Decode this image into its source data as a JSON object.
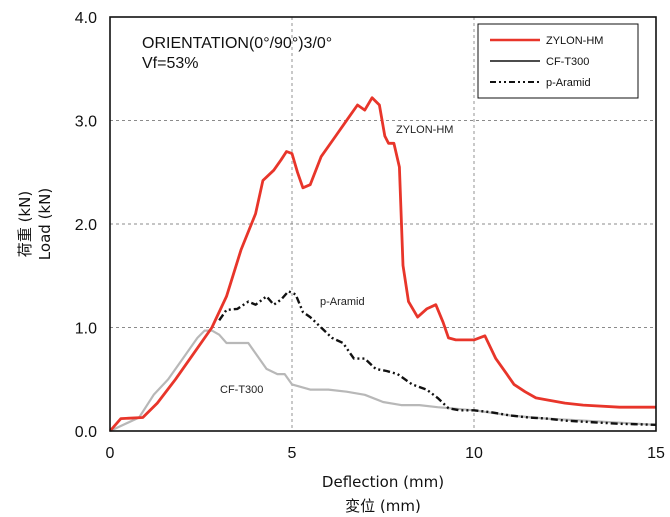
{
  "chart_data": {
    "type": "line",
    "xlabel": "Deflection (mm)",
    "xlabel_ja": "変位 (mm)",
    "ylabel": "Load (kN)",
    "ylabel_ja": "荷重 (kN)",
    "xlim": [
      0,
      15
    ],
    "ylim": [
      0,
      4.0
    ],
    "x_ticks": [
      0,
      5,
      10,
      15
    ],
    "y_ticks": [
      0.0,
      1.0,
      2.0,
      3.0,
      4.0
    ],
    "y_tick_labels": [
      "0.0",
      "1.0",
      "2.0",
      "3.0",
      "4.0"
    ],
    "grid": true,
    "legend_position": "top-right",
    "notes": [
      "ORIENTATION(0°/90°)3/0°",
      "Vf=53%"
    ],
    "series": [
      {
        "name": "ZYLON-HM",
        "color": "#e8352a",
        "style": "solid",
        "annotation": "ZYLON-HM",
        "x": [
          0,
          0.3,
          0.9,
          1.3,
          1.8,
          2.3,
          2.8,
          3.2,
          3.6,
          4.0,
          4.2,
          4.5,
          4.7,
          4.85,
          5.0,
          5.15,
          5.3,
          5.5,
          5.8,
          6.2,
          6.6,
          6.8,
          7.0,
          7.2,
          7.4,
          7.55,
          7.65,
          7.8,
          7.95,
          8.05,
          8.2,
          8.45,
          8.7,
          8.95,
          9.15,
          9.3,
          9.5,
          10.0,
          10.3,
          10.6,
          10.9,
          11.1,
          11.4,
          11.7,
          12.0,
          12.5,
          13.0,
          14.0,
          15.0
        ],
        "y": [
          0.0,
          0.12,
          0.13,
          0.27,
          0.5,
          0.75,
          1.0,
          1.3,
          1.75,
          2.1,
          2.42,
          2.52,
          2.62,
          2.7,
          2.68,
          2.5,
          2.35,
          2.38,
          2.65,
          2.85,
          3.05,
          3.15,
          3.1,
          3.22,
          3.15,
          2.85,
          2.78,
          2.78,
          2.55,
          1.6,
          1.25,
          1.1,
          1.18,
          1.22,
          1.05,
          0.9,
          0.88,
          0.88,
          0.92,
          0.7,
          0.55,
          0.45,
          0.38,
          0.32,
          0.3,
          0.27,
          0.25,
          0.23,
          0.23
        ]
      },
      {
        "name": "CF-T300",
        "color": "#b8b8b8",
        "style": "solid",
        "annotation": "CF-T300",
        "x": [
          0,
          0.8,
          1.2,
          1.6,
          2.0,
          2.4,
          2.6,
          2.8,
          3.0,
          3.2,
          3.4,
          3.8,
          4.0,
          4.3,
          4.6,
          4.8,
          5.0,
          5.5,
          6.0,
          6.5,
          7.0,
          7.5,
          8.0,
          8.5,
          9.0,
          10.0,
          11.0,
          12.0,
          13.0,
          14.0,
          15.0
        ],
        "y": [
          0.0,
          0.13,
          0.35,
          0.5,
          0.7,
          0.9,
          0.97,
          0.97,
          0.93,
          0.85,
          0.85,
          0.85,
          0.75,
          0.6,
          0.55,
          0.55,
          0.45,
          0.4,
          0.4,
          0.38,
          0.35,
          0.28,
          0.25,
          0.25,
          0.23,
          0.2,
          0.15,
          0.12,
          0.1,
          0.08,
          0.06
        ]
      },
      {
        "name": "p-Aramid",
        "color": "#111111",
        "style": "dash-dot",
        "annotation": "p-Aramid",
        "x": [
          3.0,
          3.2,
          3.5,
          3.8,
          4.0,
          4.3,
          4.5,
          4.7,
          4.9,
          5.1,
          5.3,
          5.5,
          5.8,
          6.1,
          6.4,
          6.7,
          7.0,
          7.3,
          7.6,
          7.9,
          8.3,
          8.7,
          9.0,
          9.3,
          9.6,
          10.0,
          10.5,
          11.0,
          11.5,
          12.0,
          12.5,
          13.0,
          14.0,
          15.0
        ],
        "y": [
          1.07,
          1.17,
          1.18,
          1.25,
          1.22,
          1.3,
          1.22,
          1.27,
          1.35,
          1.32,
          1.15,
          1.1,
          1.0,
          0.9,
          0.85,
          0.7,
          0.7,
          0.6,
          0.58,
          0.55,
          0.45,
          0.4,
          0.32,
          0.22,
          0.2,
          0.2,
          0.18,
          0.15,
          0.13,
          0.12,
          0.1,
          0.09,
          0.07,
          0.06
        ]
      }
    ]
  }
}
